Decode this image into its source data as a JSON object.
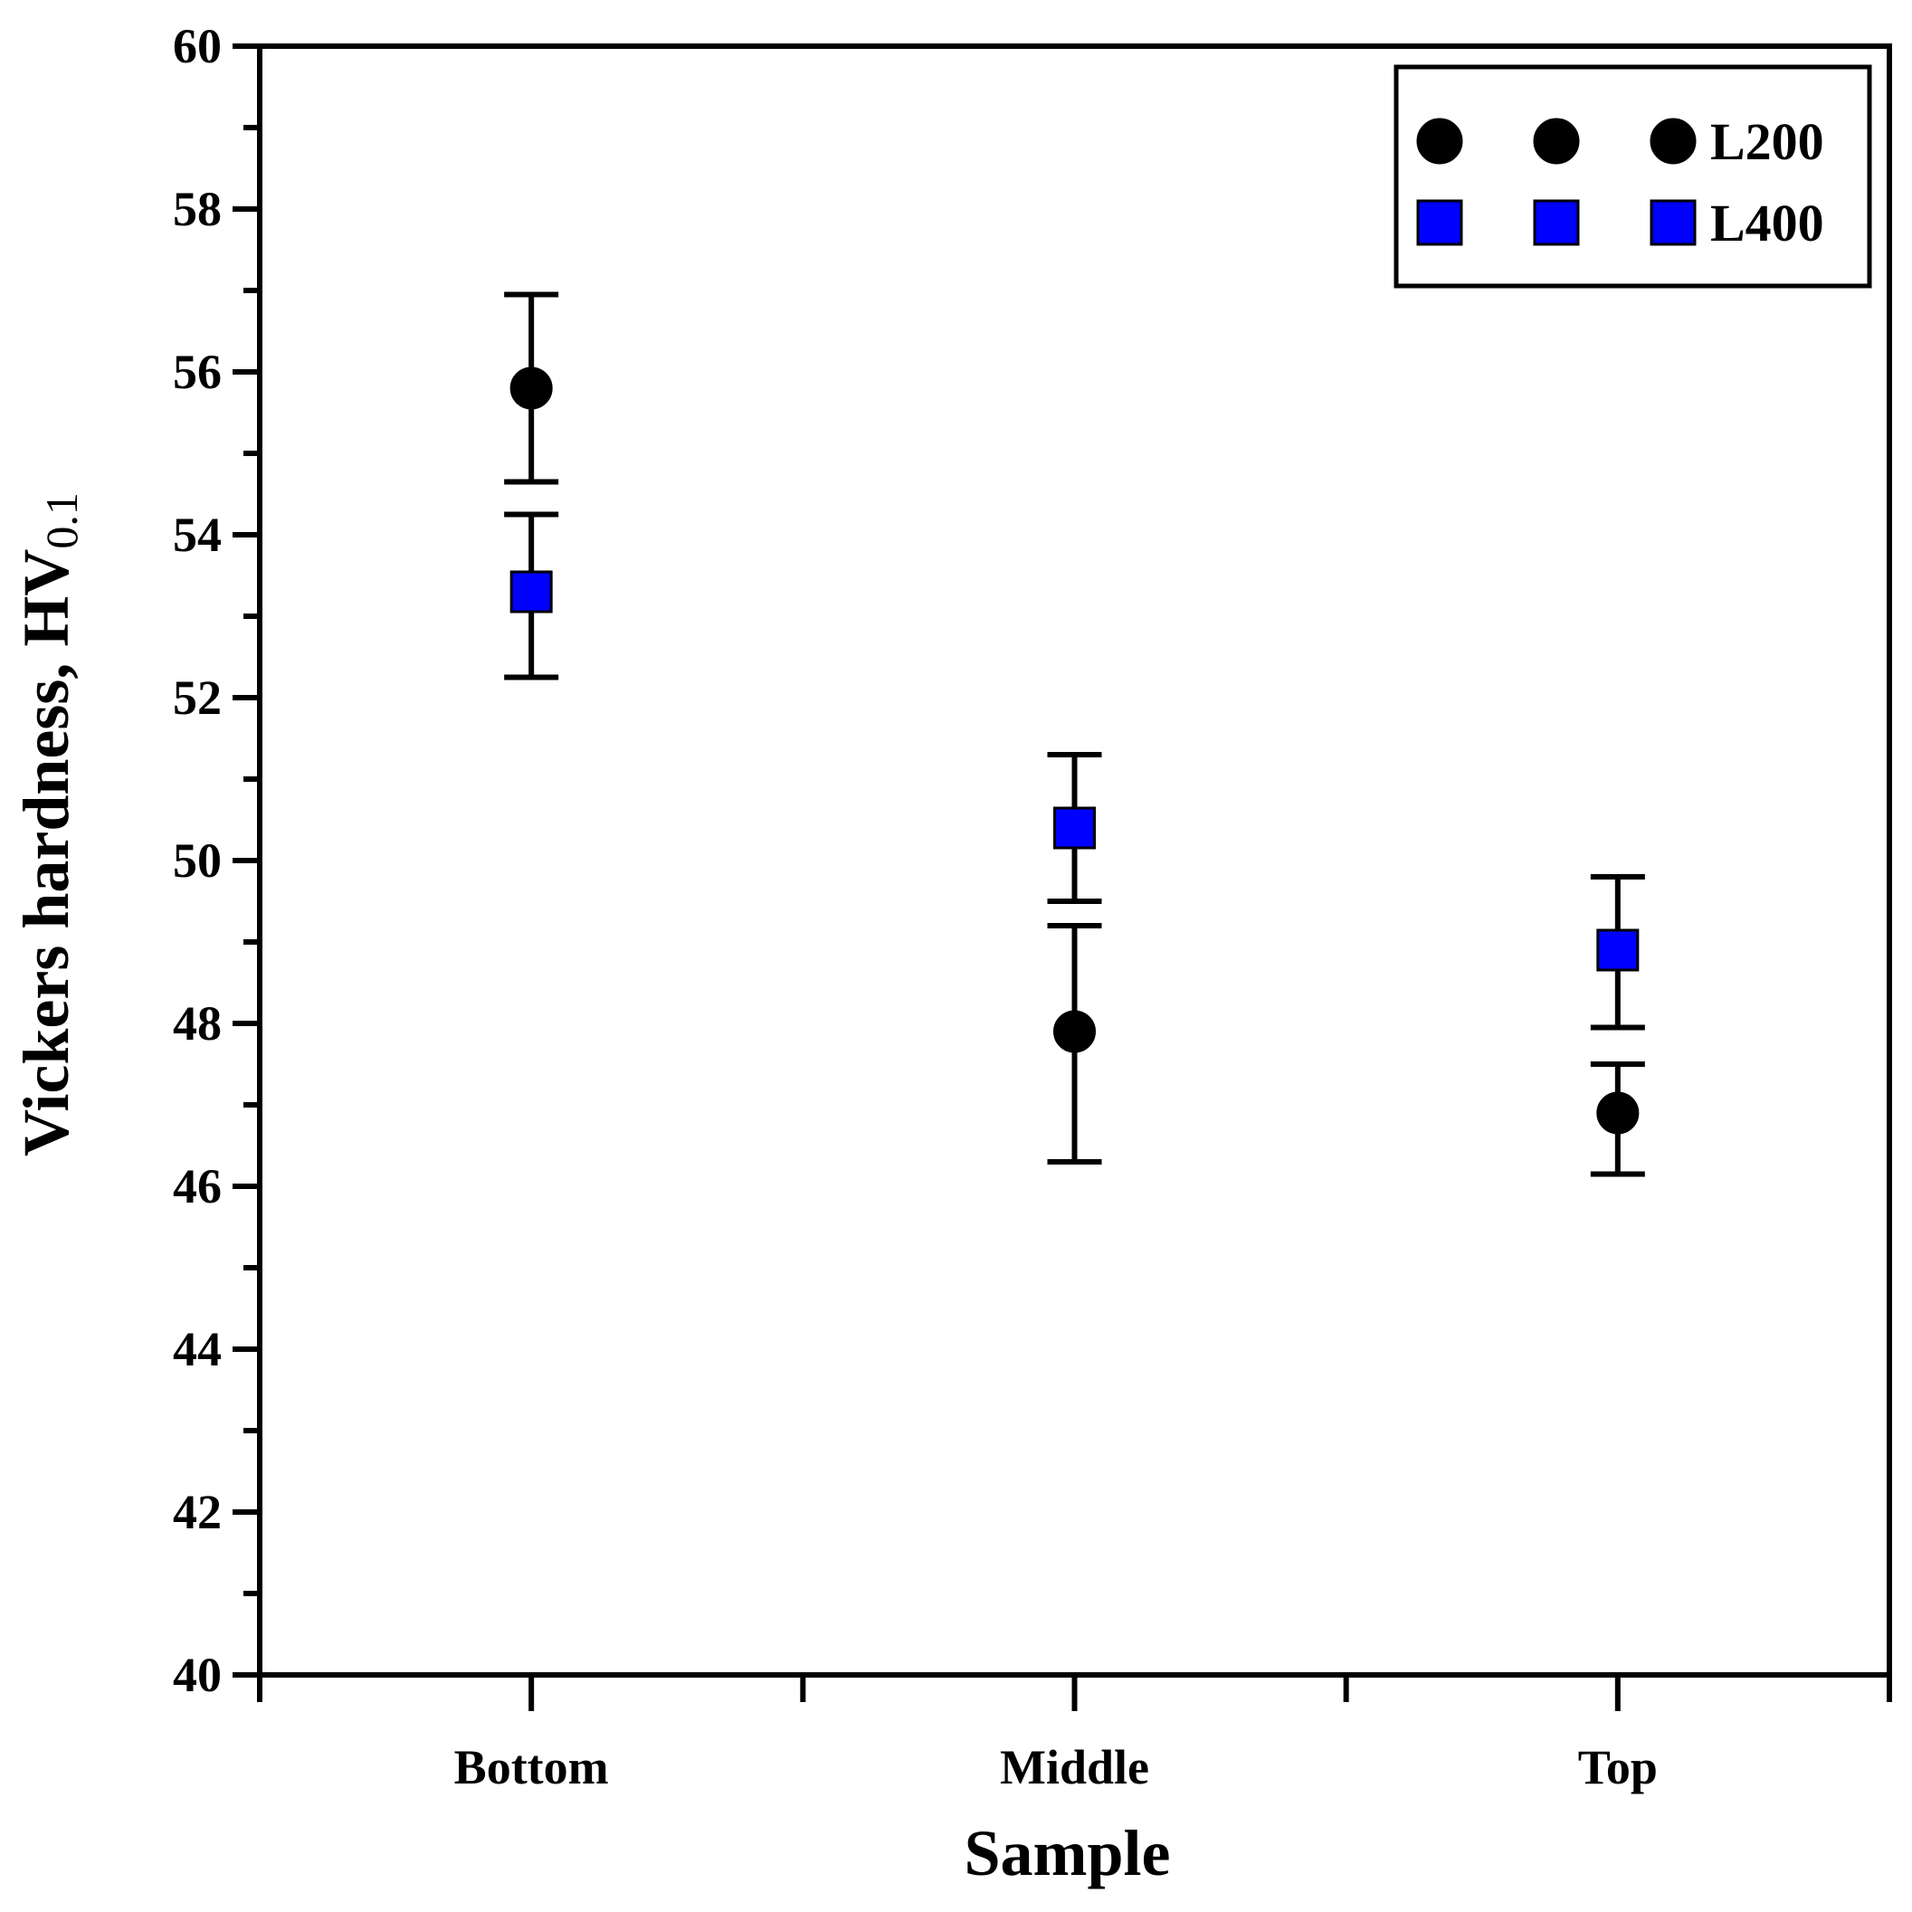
{
  "chart_data": {
    "type": "scatter",
    "title": "",
    "xlabel": "Sample",
    "ylabel_main": "Vickers hardness, HV",
    "ylabel_sub": "0.1",
    "categories": [
      "Bottom",
      "Middle",
      "Top"
    ],
    "ylim": [
      40,
      60
    ],
    "y_major_ticks": [
      40,
      42,
      44,
      46,
      48,
      50,
      52,
      54,
      56,
      58,
      60
    ],
    "y_minor_step": 1,
    "grid": false,
    "legend_position": "top-right",
    "colors": {
      "L200": "#000000",
      "L400": "#0000ff",
      "axis": "#000000"
    },
    "series": [
      {
        "name": "L200",
        "marker": "circle",
        "values": [
          55.8,
          47.9,
          46.9
        ],
        "err_upper": [
          56.95,
          49.2,
          47.5
        ],
        "err_lower": [
          54.65,
          46.3,
          46.15
        ]
      },
      {
        "name": "L400",
        "marker": "square",
        "values": [
          53.3,
          50.4,
          48.9
        ],
        "err_upper": [
          54.25,
          51.3,
          49.8
        ],
        "err_lower": [
          52.25,
          49.5,
          47.95
        ]
      }
    ]
  }
}
